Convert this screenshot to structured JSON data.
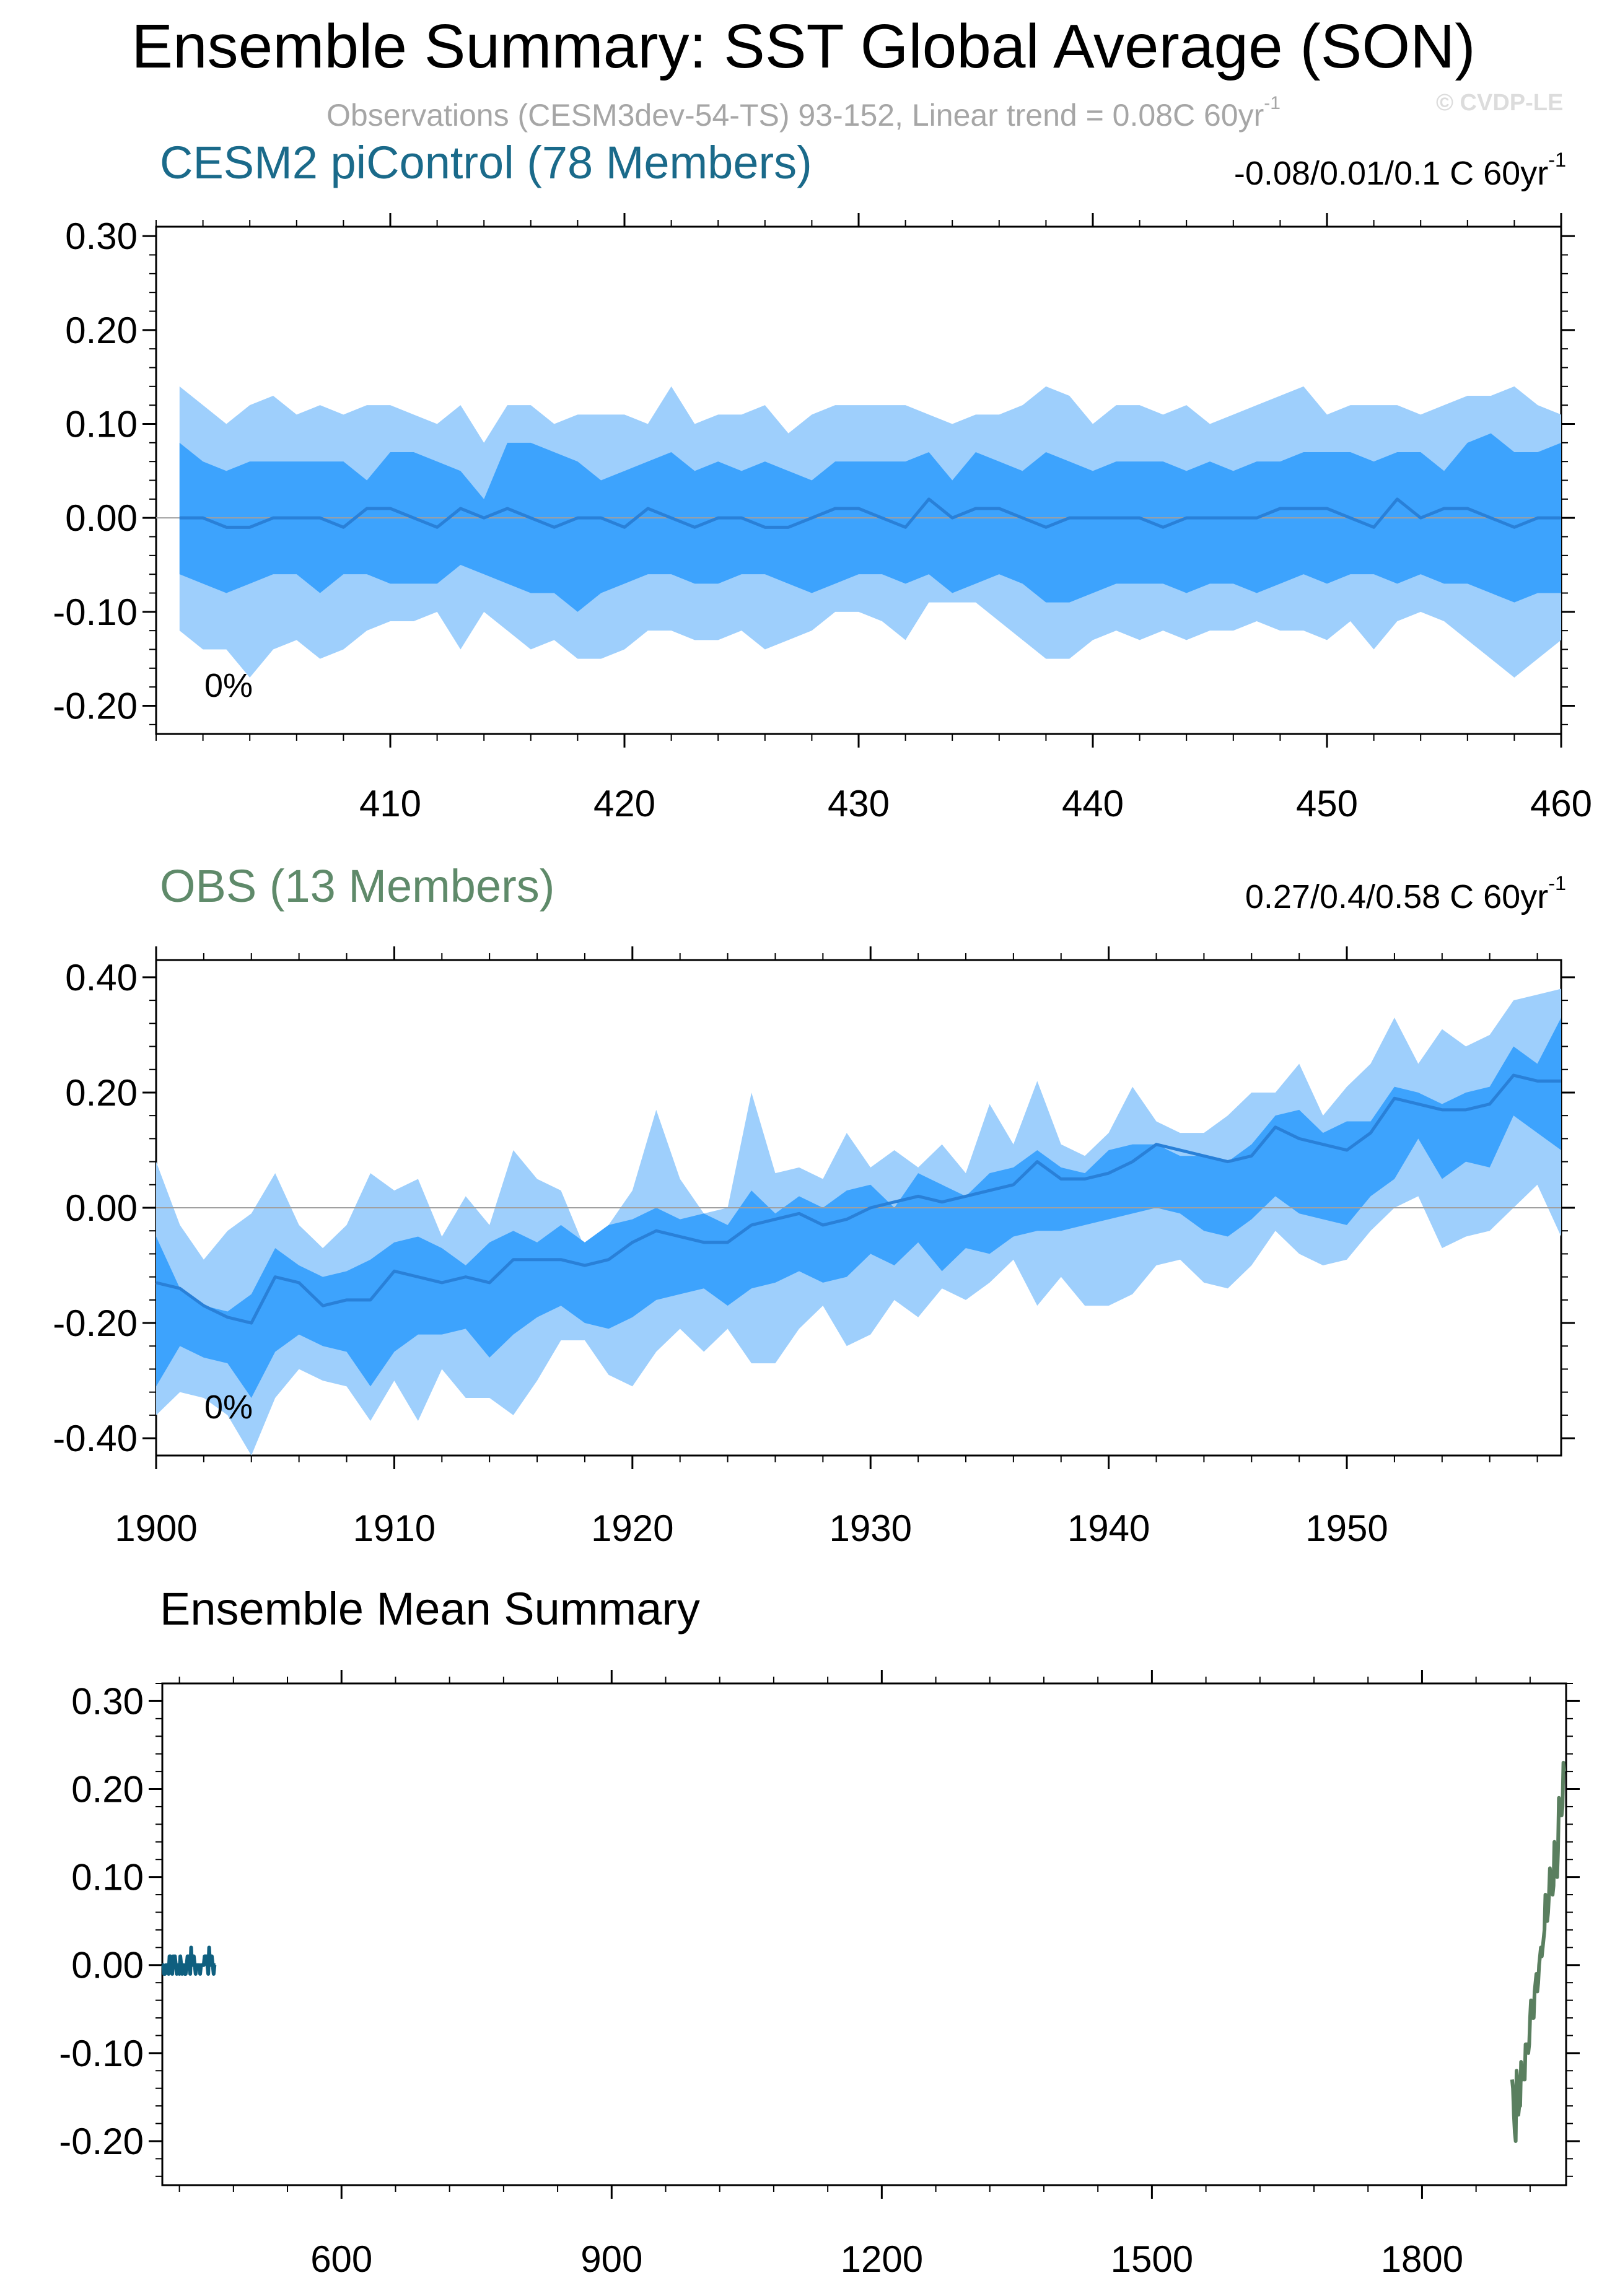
{
  "title": "Ensemble Summary: SST Global Average (SON)",
  "subtitle": "Observations (CESM3dev-54-TS) 93-152, Linear trend = 0.08C 60yr",
  "subtitle_sup": "-1",
  "watermark": "© CVDP-LE",
  "colors": {
    "light_band": "#9ecffc",
    "dark_band": "#3da3fd",
    "mean_line": "#2980d8",
    "model_title": "#1a6a8a",
    "obs_title": "#5f8a6a",
    "model_line": "#0f5f7f",
    "obs_line": "#5a7f5f"
  },
  "panels": {
    "model": {
      "title": "CESM2 piControl (78 Members)",
      "trend": "-0.08/0.01/0.1 C 60yr",
      "trend_sup": "-1",
      "pct": "0%"
    },
    "obs": {
      "title": "OBS (13 Members)",
      "trend": "0.27/0.4/0.58 C 60yr",
      "trend_sup": "-1",
      "pct": "0%"
    },
    "mean": {
      "title": "Ensemble Mean Summary"
    }
  },
  "chart_data": [
    {
      "type": "area",
      "title": "CESM2 piControl (78 Members)",
      "x_start": 401,
      "x_end": 460,
      "xlim": [
        400,
        460
      ],
      "ylim": [
        -0.23,
        0.31
      ],
      "xticks": [
        410,
        420,
        430,
        440,
        450,
        460
      ],
      "yticks": [
        0.3,
        0.2,
        0.1,
        0.0,
        -0.1,
        -0.2
      ],
      "ytick_labels": [
        "0.30",
        "0.20",
        "0.10",
        "0.00",
        "-0.10",
        "-0.20"
      ],
      "series": [
        {
          "role": "p90",
          "values": [
            0.14,
            0.12,
            0.1,
            0.12,
            0.13,
            0.11,
            0.12,
            0.11,
            0.12,
            0.12,
            0.11,
            0.1,
            0.12,
            0.08,
            0.12,
            0.12,
            0.1,
            0.11,
            0.11,
            0.11,
            0.1,
            0.14,
            0.1,
            0.11,
            0.11,
            0.12,
            0.09,
            0.11,
            0.12,
            0.12,
            0.12,
            0.12,
            0.11,
            0.1,
            0.11,
            0.11,
            0.12,
            0.14,
            0.13,
            0.1,
            0.12,
            0.12,
            0.11,
            0.12,
            0.1,
            0.11,
            0.12,
            0.13,
            0.14,
            0.11,
            0.12,
            0.12,
            0.12,
            0.11,
            0.12,
            0.13,
            0.13,
            0.14,
            0.12,
            0.11
          ]
        },
        {
          "role": "p75",
          "values": [
            0.08,
            0.06,
            0.05,
            0.06,
            0.06,
            0.06,
            0.06,
            0.06,
            0.04,
            0.07,
            0.07,
            0.06,
            0.05,
            0.02,
            0.08,
            0.08,
            0.07,
            0.06,
            0.04,
            0.05,
            0.06,
            0.07,
            0.05,
            0.06,
            0.05,
            0.06,
            0.05,
            0.04,
            0.06,
            0.06,
            0.06,
            0.06,
            0.07,
            0.04,
            0.07,
            0.06,
            0.05,
            0.07,
            0.06,
            0.05,
            0.06,
            0.06,
            0.06,
            0.05,
            0.06,
            0.05,
            0.06,
            0.06,
            0.07,
            0.07,
            0.07,
            0.06,
            0.07,
            0.07,
            0.05,
            0.08,
            0.09,
            0.07,
            0.07,
            0.08
          ]
        },
        {
          "role": "mean",
          "values": [
            0.0,
            0.0,
            -0.01,
            -0.01,
            0.0,
            0.0,
            0.0,
            -0.01,
            0.01,
            0.01,
            0.0,
            -0.01,
            0.01,
            0.0,
            0.01,
            0.0,
            -0.01,
            0.0,
            0.0,
            -0.01,
            0.01,
            0.0,
            -0.01,
            0.0,
            0.0,
            -0.01,
            -0.01,
            0.0,
            0.01,
            0.01,
            0.0,
            -0.01,
            0.02,
            0.0,
            0.01,
            0.01,
            0.0,
            -0.01,
            0.0,
            0.0,
            0.0,
            0.0,
            -0.01,
            0.0,
            0.0,
            0.0,
            0.0,
            0.01,
            0.01,
            0.01,
            0.0,
            -0.01,
            0.02,
            0.0,
            0.01,
            0.01,
            0.0,
            -0.01,
            0.0,
            0.0
          ]
        },
        {
          "role": "p25",
          "values": [
            -0.06,
            -0.07,
            -0.08,
            -0.07,
            -0.06,
            -0.06,
            -0.08,
            -0.06,
            -0.06,
            -0.07,
            -0.07,
            -0.07,
            -0.05,
            -0.06,
            -0.07,
            -0.08,
            -0.08,
            -0.1,
            -0.08,
            -0.07,
            -0.06,
            -0.06,
            -0.07,
            -0.07,
            -0.06,
            -0.06,
            -0.07,
            -0.08,
            -0.07,
            -0.06,
            -0.06,
            -0.07,
            -0.06,
            -0.08,
            -0.07,
            -0.06,
            -0.07,
            -0.09,
            -0.09,
            -0.08,
            -0.07,
            -0.07,
            -0.07,
            -0.08,
            -0.07,
            -0.07,
            -0.08,
            -0.07,
            -0.06,
            -0.07,
            -0.06,
            -0.06,
            -0.07,
            -0.06,
            -0.07,
            -0.07,
            -0.08,
            -0.09,
            -0.08,
            -0.08
          ]
        },
        {
          "role": "p10",
          "values": [
            -0.12,
            -0.14,
            -0.14,
            -0.17,
            -0.14,
            -0.13,
            -0.15,
            -0.14,
            -0.12,
            -0.11,
            -0.11,
            -0.1,
            -0.14,
            -0.1,
            -0.12,
            -0.14,
            -0.13,
            -0.15,
            -0.15,
            -0.14,
            -0.12,
            -0.12,
            -0.13,
            -0.13,
            -0.12,
            -0.14,
            -0.13,
            -0.12,
            -0.1,
            -0.1,
            -0.11,
            -0.13,
            -0.09,
            -0.09,
            -0.09,
            -0.11,
            -0.13,
            -0.15,
            -0.15,
            -0.13,
            -0.12,
            -0.13,
            -0.12,
            -0.13,
            -0.12,
            -0.12,
            -0.11,
            -0.12,
            -0.12,
            -0.13,
            -0.11,
            -0.14,
            -0.11,
            -0.1,
            -0.11,
            -0.13,
            -0.15,
            -0.17,
            -0.15,
            -0.13
          ]
        }
      ]
    },
    {
      "type": "area",
      "title": "OBS (13 Members)",
      "x_start": 1900,
      "x_end": 1959,
      "xlim": [
        1900,
        1959
      ],
      "ylim": [
        -0.43,
        0.43
      ],
      "xticks": [
        1900,
        1910,
        1920,
        1930,
        1940,
        1950
      ],
      "yticks": [
        0.4,
        0.2,
        0.0,
        -0.2,
        -0.4
      ],
      "ytick_labels": [
        "0.40",
        "0.20",
        "0.00",
        "-0.20",
        "-0.40"
      ],
      "series": [
        {
          "role": "p90",
          "values": [
            0.08,
            -0.03,
            -0.09,
            -0.04,
            -0.01,
            0.06,
            -0.03,
            -0.07,
            -0.03,
            0.06,
            0.03,
            0.05,
            -0.05,
            0.02,
            -0.03,
            0.1,
            0.05,
            0.03,
            -0.07,
            -0.03,
            0.03,
            0.17,
            0.05,
            -0.01,
            0.0,
            0.2,
            0.06,
            0.07,
            0.05,
            0.13,
            0.07,
            0.1,
            0.07,
            0.11,
            0.06,
            0.18,
            0.11,
            0.22,
            0.11,
            0.09,
            0.13,
            0.21,
            0.15,
            0.13,
            0.13,
            0.16,
            0.2,
            0.2,
            0.25,
            0.16,
            0.21,
            0.25,
            0.33,
            0.25,
            0.31,
            0.28,
            0.3,
            0.36,
            0.37,
            0.38
          ]
        },
        {
          "role": "p75",
          "values": [
            -0.05,
            -0.14,
            -0.17,
            -0.18,
            -0.15,
            -0.07,
            -0.1,
            -0.12,
            -0.11,
            -0.09,
            -0.06,
            -0.05,
            -0.07,
            -0.1,
            -0.06,
            -0.04,
            -0.06,
            -0.03,
            -0.06,
            -0.03,
            -0.02,
            0.0,
            -0.02,
            -0.01,
            -0.03,
            0.03,
            -0.01,
            0.02,
            0.0,
            0.03,
            0.04,
            0.0,
            0.06,
            0.04,
            0.02,
            0.06,
            0.07,
            0.1,
            0.07,
            0.06,
            0.1,
            0.11,
            0.11,
            0.09,
            0.09,
            0.08,
            0.11,
            0.16,
            0.17,
            0.13,
            0.15,
            0.15,
            0.21,
            0.2,
            0.18,
            0.2,
            0.21,
            0.28,
            0.25,
            0.33
          ]
        },
        {
          "role": "mean",
          "values": [
            -0.13,
            -0.14,
            -0.17,
            -0.19,
            -0.2,
            -0.12,
            -0.13,
            -0.17,
            -0.16,
            -0.16,
            -0.11,
            -0.12,
            -0.13,
            -0.12,
            -0.13,
            -0.09,
            -0.09,
            -0.09,
            -0.1,
            -0.09,
            -0.06,
            -0.04,
            -0.05,
            -0.06,
            -0.06,
            -0.03,
            -0.02,
            -0.01,
            -0.03,
            -0.02,
            0.0,
            0.01,
            0.02,
            0.01,
            0.02,
            0.03,
            0.04,
            0.08,
            0.05,
            0.05,
            0.06,
            0.08,
            0.11,
            0.1,
            0.09,
            0.08,
            0.09,
            0.14,
            0.12,
            0.11,
            0.1,
            0.13,
            0.19,
            0.18,
            0.17,
            0.17,
            0.18,
            0.23,
            0.22,
            0.22
          ]
        },
        {
          "role": "p25",
          "values": [
            -0.31,
            -0.24,
            -0.26,
            -0.27,
            -0.33,
            -0.25,
            -0.22,
            -0.24,
            -0.25,
            -0.31,
            -0.25,
            -0.22,
            -0.22,
            -0.21,
            -0.26,
            -0.22,
            -0.19,
            -0.17,
            -0.2,
            -0.21,
            -0.19,
            -0.16,
            -0.15,
            -0.14,
            -0.17,
            -0.14,
            -0.13,
            -0.11,
            -0.13,
            -0.12,
            -0.08,
            -0.1,
            -0.06,
            -0.11,
            -0.07,
            -0.08,
            -0.05,
            -0.04,
            -0.04,
            -0.03,
            -0.02,
            -0.01,
            0.0,
            -0.01,
            -0.04,
            -0.05,
            -0.02,
            0.02,
            -0.01,
            -0.02,
            -0.03,
            0.02,
            0.05,
            0.12,
            0.05,
            0.08,
            0.07,
            0.16,
            0.13,
            0.1
          ]
        },
        {
          "role": "p10",
          "values": [
            -0.36,
            -0.32,
            -0.33,
            -0.36,
            -0.43,
            -0.33,
            -0.28,
            -0.3,
            -0.31,
            -0.37,
            -0.3,
            -0.37,
            -0.28,
            -0.33,
            -0.33,
            -0.36,
            -0.3,
            -0.23,
            -0.23,
            -0.29,
            -0.31,
            -0.25,
            -0.21,
            -0.25,
            -0.21,
            -0.27,
            -0.27,
            -0.21,
            -0.17,
            -0.24,
            -0.22,
            -0.16,
            -0.19,
            -0.14,
            -0.16,
            -0.13,
            -0.09,
            -0.17,
            -0.12,
            -0.17,
            -0.17,
            -0.15,
            -0.1,
            -0.09,
            -0.13,
            -0.14,
            -0.1,
            -0.04,
            -0.08,
            -0.1,
            -0.09,
            -0.04,
            0.0,
            0.02,
            -0.07,
            -0.05,
            -0.04,
            0.0,
            0.04,
            -0.05
          ]
        }
      ]
    },
    {
      "type": "line",
      "title": "Ensemble Mean Summary",
      "xlim": [
        401,
        1960
      ],
      "ylim": [
        -0.25,
        0.32
      ],
      "xticks": [
        600,
        900,
        1200,
        1500,
        1800
      ],
      "yticks": [
        0.3,
        0.2,
        0.1,
        0.0,
        -0.1,
        -0.2
      ],
      "ytick_labels": [
        "0.30",
        "0.20",
        "0.10",
        "0.00",
        "-0.10",
        "-0.20"
      ],
      "series": [
        {
          "name": "CESM2 piControl",
          "x_start": 401,
          "values": [
            0.0,
            0.0,
            -0.01,
            -0.01,
            0.0,
            0.0,
            0.0,
            -0.01,
            0.01,
            0.01,
            0.0,
            -0.01,
            0.01,
            0.0,
            0.01,
            0.0,
            -0.01,
            0.0,
            0.0,
            -0.01,
            0.01,
            0.0,
            -0.01,
            0.0,
            0.0,
            -0.01,
            -0.01,
            0.0,
            0.01,
            0.01,
            0.0,
            -0.01,
            0.02,
            0.0,
            0.01,
            0.01,
            0.0,
            -0.01,
            0.0,
            0.0,
            0.0,
            0.0,
            -0.01,
            0.0,
            0.0,
            0.0,
            0.0,
            0.01,
            0.01,
            0.01,
            0.0,
            -0.01,
            0.02,
            0.0,
            0.01,
            0.01,
            0.0,
            -0.01,
            0.0,
            0.0
          ]
        },
        {
          "name": "OBS",
          "x_start": 1900,
          "values": [
            -0.13,
            -0.14,
            -0.17,
            -0.19,
            -0.2,
            -0.12,
            -0.13,
            -0.17,
            -0.16,
            -0.16,
            -0.11,
            -0.12,
            -0.13,
            -0.12,
            -0.13,
            -0.09,
            -0.09,
            -0.09,
            -0.1,
            -0.09,
            -0.06,
            -0.04,
            -0.05,
            -0.06,
            -0.06,
            -0.03,
            -0.02,
            -0.01,
            -0.03,
            -0.02,
            0.0,
            0.01,
            0.02,
            0.01,
            0.02,
            0.03,
            0.04,
            0.08,
            0.05,
            0.05,
            0.06,
            0.08,
            0.11,
            0.1,
            0.09,
            0.08,
            0.09,
            0.14,
            0.12,
            0.11,
            0.1,
            0.13,
            0.19,
            0.18,
            0.17,
            0.17,
            0.18,
            0.23,
            0.22,
            0.22
          ]
        }
      ]
    }
  ]
}
